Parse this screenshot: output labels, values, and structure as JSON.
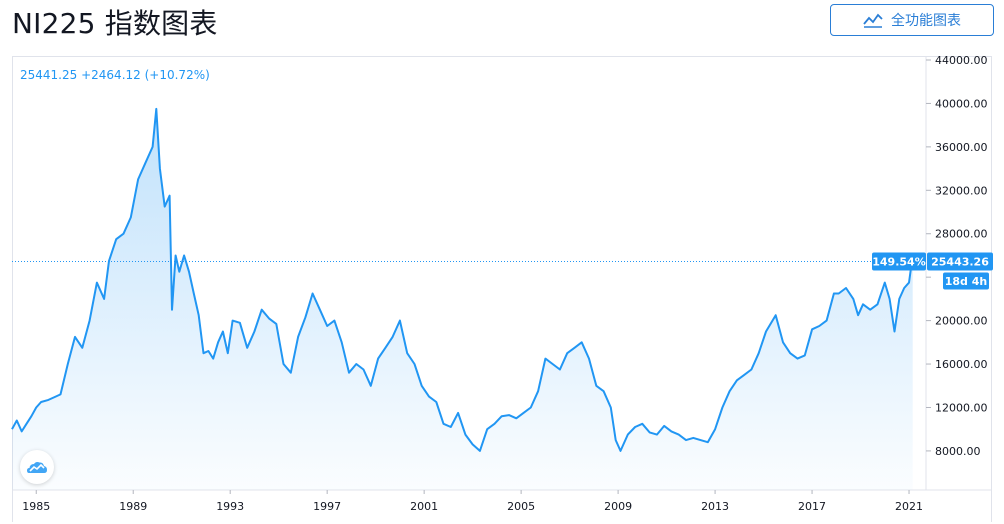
{
  "header": {
    "title": "NI225 指数图表",
    "fullscreen_label": "全功能图表"
  },
  "quote": {
    "last": "25441.25",
    "change": "+2464.12",
    "change_pct": "(+10.72%)"
  },
  "price_label": "25443.26",
  "percent_label": "149.54%",
  "countdown_label": "18d 4h",
  "colors": {
    "line": "#2196f3",
    "fill": "#2196f3",
    "text": "#131722",
    "accent": "#2a7ed6"
  },
  "chart_data": {
    "type": "area",
    "title": "NI225 指数图表",
    "xlabel": "",
    "ylabel": "",
    "xlim": [
      1984.0,
      2021.7
    ],
    "ylim": [
      4400,
      44000
    ],
    "yticks": [
      8000,
      12000,
      16000,
      20000,
      24000,
      28000,
      32000,
      36000,
      40000,
      44000
    ],
    "ytick_labels": [
      "8000.00",
      "12000.00",
      "16000.00",
      "20000.00",
      "",
      "28000.00",
      "32000.00",
      "36000.00",
      "40000.00",
      "44000.00"
    ],
    "xticks": [
      1985,
      1989,
      1993,
      1997,
      2001,
      2005,
      2009,
      2013,
      2017,
      2021
    ],
    "xtick_labels": [
      "1985",
      "1989",
      "1993",
      "1997",
      "2001",
      "2005",
      "2009",
      "2013",
      "2017",
      "2021"
    ],
    "current_value": 25443.26,
    "grid": false,
    "series": [
      {
        "x": [
          1984.0,
          1984.2,
          1984.4,
          1984.6,
          1984.8,
          1985.0,
          1985.2,
          1985.5,
          1985.8,
          1986.0,
          1986.3,
          1986.6,
          1986.9,
          1987.2,
          1987.5,
          1987.8,
          1988.0,
          1988.3,
          1988.6,
          1988.9,
          1989.2,
          1989.5,
          1989.8,
          1989.95,
          1990.1,
          1990.3,
          1990.5,
          1990.6,
          1990.75,
          1990.9,
          1991.1,
          1991.3,
          1991.5,
          1991.7,
          1991.9,
          1992.1,
          1992.3,
          1992.5,
          1992.7,
          1992.9,
          1993.1,
          1993.4,
          1993.7,
          1994.0,
          1994.3,
          1994.6,
          1994.9,
          1995.2,
          1995.5,
          1995.8,
          1996.1,
          1996.4,
          1996.7,
          1997.0,
          1997.3,
          1997.6,
          1997.9,
          1998.2,
          1998.5,
          1998.8,
          1999.1,
          1999.4,
          1999.7,
          2000.0,
          2000.3,
          2000.6,
          2000.9,
          2001.2,
          2001.5,
          2001.8,
          2002.1,
          2002.4,
          2002.7,
          2003.0,
          2003.3,
          2003.6,
          2003.9,
          2004.2,
          2004.5,
          2004.8,
          2005.1,
          2005.4,
          2005.7,
          2006.0,
          2006.3,
          2006.6,
          2006.9,
          2007.2,
          2007.5,
          2007.8,
          2008.1,
          2008.4,
          2008.7,
          2008.9,
          2009.1,
          2009.4,
          2009.7,
          2010.0,
          2010.3,
          2010.6,
          2010.9,
          2011.2,
          2011.5,
          2011.8,
          2012.1,
          2012.4,
          2012.7,
          2013.0,
          2013.3,
          2013.6,
          2013.9,
          2014.2,
          2014.5,
          2014.8,
          2015.1,
          2015.5,
          2015.8,
          2016.1,
          2016.4,
          2016.7,
          2017.0,
          2017.3,
          2017.6,
          2017.9,
          2018.1,
          2018.4,
          2018.7,
          2018.9,
          2019.1,
          2019.4,
          2019.7,
          2020.0,
          2020.2,
          2020.4,
          2020.6,
          2020.8,
          2021.0,
          2021.15
        ],
        "values": [
          10000,
          10800,
          9800,
          10500,
          11200,
          12000,
          12500,
          12700,
          13000,
          13200,
          16000,
          18500,
          17500,
          20000,
          23500,
          22000,
          25500,
          27500,
          28000,
          29500,
          33000,
          34500,
          36000,
          39500,
          34000,
          30500,
          31500,
          21000,
          26000,
          24500,
          26000,
          24500,
          22500,
          20500,
          17000,
          17200,
          16500,
          18000,
          19000,
          17000,
          20000,
          19800,
          17500,
          19000,
          21000,
          20200,
          19700,
          16000,
          15200,
          18500,
          20300,
          22500,
          21000,
          19500,
          20000,
          18000,
          15200,
          16000,
          15500,
          14000,
          16500,
          17500,
          18500,
          20000,
          17000,
          16000,
          14000,
          13000,
          12500,
          10500,
          10200,
          11500,
          9500,
          8600,
          8000,
          10000,
          10500,
          11200,
          11300,
          11000,
          11500,
          12000,
          13500,
          16500,
          16000,
          15500,
          17000,
          17500,
          18000,
          16500,
          14000,
          13500,
          12000,
          9000,
          8000,
          9500,
          10200,
          10500,
          9700,
          9500,
          10300,
          9800,
          9500,
          9000,
          9200,
          9000,
          8800,
          10000,
          12000,
          13500,
          14500,
          15000,
          15500,
          17000,
          19000,
          20500,
          18000,
          17000,
          16500,
          16800,
          19200,
          19500,
          20000,
          22500,
          22500,
          23000,
          22000,
          20500,
          21500,
          21000,
          21500,
          23500,
          22000,
          19000,
          22000,
          23000,
          23500,
          26000
        ]
      }
    ]
  }
}
